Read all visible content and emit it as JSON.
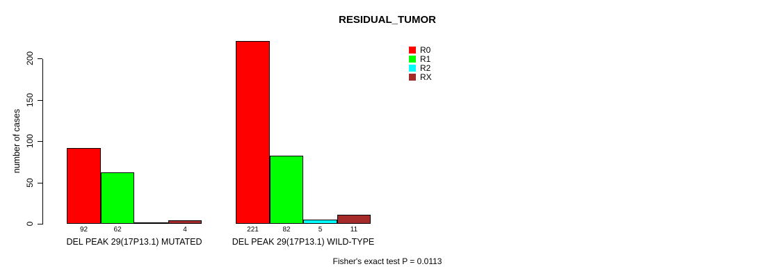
{
  "chart_data": {
    "type": "bar",
    "title": "RESIDUAL_TUMOR",
    "xlabel": "",
    "ylabel": "number of cases",
    "categories": [
      "DEL PEAK 29(17P13.1) MUTATED",
      "DEL PEAK 29(17P13.1) WILD-TYPE"
    ],
    "series": [
      {
        "name": "R0",
        "color": "#ff0000",
        "values": [
          92,
          221
        ]
      },
      {
        "name": "R1",
        "color": "#00ff00",
        "values": [
          62,
          82
        ]
      },
      {
        "name": "R2",
        "color": "#00ffff",
        "values": [
          0,
          5
        ]
      },
      {
        "name": "RX",
        "color": "#a52a2a",
        "values": [
          4,
          11
        ]
      }
    ],
    "bar_value_labels": [
      [
        "92",
        "62",
        "",
        "4"
      ],
      [
        "221",
        "82",
        "5",
        "11"
      ]
    ],
    "yticks": [
      0,
      50,
      100,
      150,
      200
    ],
    "ylim": [
      0,
      225
    ],
    "grid": false,
    "legend_position": "top-right",
    "legend_items": [
      "R0",
      "R1",
      "R2",
      "RX"
    ],
    "annotation": "Fisher's exact test P = 0.0113"
  }
}
